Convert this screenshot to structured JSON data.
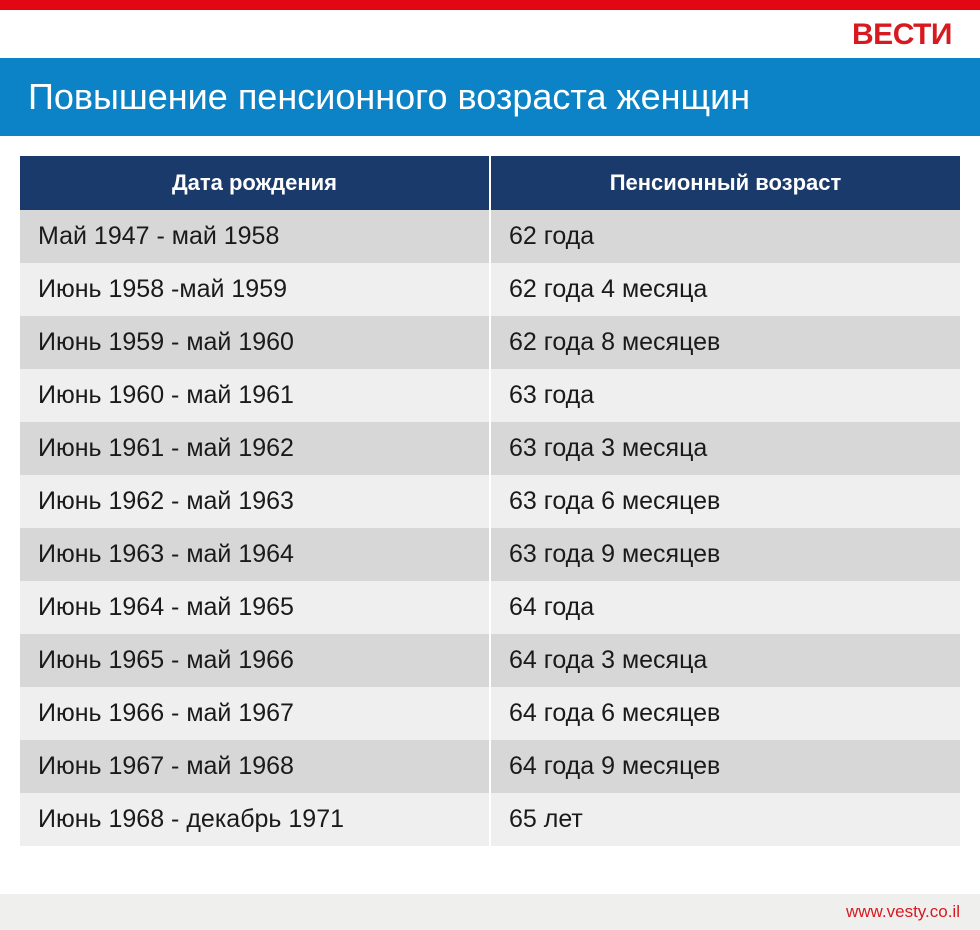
{
  "brand": "ВЕСТИ",
  "brand_color": "#d71a20",
  "title": "Повышение пенсионного возраста женщин",
  "title_bg": "#0b83c6",
  "accent_bar_color": "#e30613",
  "table": {
    "header_bg": "#1a3a6b",
    "row_even_bg": "#d7d7d7",
    "row_odd_bg": "#efefef",
    "columns": [
      "Дата рождения",
      "Пенсионный возраст"
    ],
    "rows": [
      [
        "Май 1947 - май 1958",
        "62 года"
      ],
      [
        "Июнь 1958 -май 1959",
        "62 года 4 месяца"
      ],
      [
        "Июнь 1959 - май 1960",
        "62 года 8 месяцев"
      ],
      [
        "Июнь 1960 - май 1961",
        "63 года"
      ],
      [
        "Июнь 1961 - май 1962",
        "63 года 3 месяца"
      ],
      [
        "Июнь 1962 - май 1963",
        "63 года 6 месяцев"
      ],
      [
        "Июнь 1963 - май 1964",
        "63 года 9 месяцев"
      ],
      [
        "Июнь 1964 - май 1965",
        "64 года"
      ],
      [
        "Июнь 1965 - май 1966",
        "64 года 3 месяца"
      ],
      [
        "Июнь 1966 - май 1967",
        "64 года 6 месяцев"
      ],
      [
        "Июнь 1967 - май 1968",
        "64 года 9 месяцев"
      ],
      [
        "Июнь 1968 - декабрь 1971",
        "65 лет"
      ]
    ]
  },
  "footer": {
    "url": "www.vesty.co.il",
    "url_color": "#d71a20",
    "bg": "#efefee"
  }
}
